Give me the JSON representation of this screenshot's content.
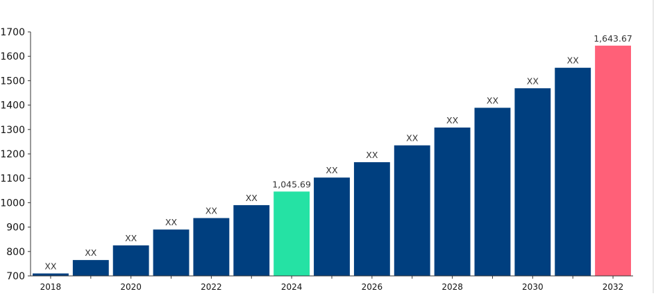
{
  "chart_data": {
    "type": "bar",
    "title": "",
    "xlabel": "",
    "ylabel": "",
    "ylim": [
      700,
      1700
    ],
    "y_ticks": [
      "700",
      "800",
      "900",
      "1000",
      "1100",
      "1200",
      "1300",
      "1400",
      "1500",
      "1600",
      "1700"
    ],
    "categories": [
      "2018",
      "2019",
      "2020",
      "2021",
      "2022",
      "2023",
      "2024",
      "2025",
      "2026",
      "2027",
      "2028",
      "2029",
      "2030",
      "2031",
      "2032"
    ],
    "x_tick_labels": [
      "2018",
      "",
      "2020",
      "",
      "2022",
      "",
      "2024",
      "",
      "2026",
      "",
      "2028",
      "",
      "2030",
      "",
      "2032"
    ],
    "values": [
      710,
      765,
      825,
      890,
      937,
      990,
      1045.69,
      1103,
      1166,
      1235,
      1308,
      1389,
      1469,
      1553,
      1643.67
    ],
    "data_labels": [
      "XX",
      "XX",
      "XX",
      "XX",
      "XX",
      "XX",
      "1,045.69",
      "XX",
      "XX",
      "XX",
      "XX",
      "XX",
      "XX",
      "XX",
      "1,643.67"
    ],
    "bar_colors": [
      "#003f7f",
      "#003f7f",
      "#003f7f",
      "#003f7f",
      "#003f7f",
      "#003f7f",
      "#25e2a4",
      "#003f7f",
      "#003f7f",
      "#003f7f",
      "#003f7f",
      "#003f7f",
      "#003f7f",
      "#003f7f",
      "#ff6078"
    ],
    "grid": false,
    "legend": "none"
  }
}
